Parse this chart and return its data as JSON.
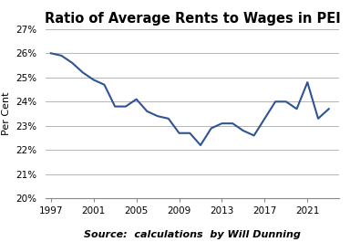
{
  "title": "Ratio of Average Rents to Wages in PEI",
  "source_label": "Source:  calculations  by Will Dunning",
  "ylabel": "Per Cent",
  "years": [
    1997,
    1998,
    1999,
    2000,
    2001,
    2002,
    2003,
    2004,
    2005,
    2006,
    2007,
    2008,
    2009,
    2010,
    2011,
    2012,
    2013,
    2014,
    2015,
    2016,
    2017,
    2018,
    2019,
    2020,
    2021,
    2022,
    2023
  ],
  "values": [
    0.26,
    0.259,
    0.256,
    0.252,
    0.249,
    0.247,
    0.238,
    0.238,
    0.241,
    0.236,
    0.234,
    0.233,
    0.227,
    0.227,
    0.222,
    0.229,
    0.231,
    0.231,
    0.228,
    0.226,
    0.233,
    0.24,
    0.24,
    0.237,
    0.248,
    0.233,
    0.237
  ],
  "ylim": [
    0.2,
    0.27
  ],
  "yticks": [
    0.2,
    0.21,
    0.22,
    0.23,
    0.24,
    0.25,
    0.26,
    0.27
  ],
  "xticks": [
    1997,
    2001,
    2005,
    2009,
    2013,
    2017,
    2021
  ],
  "xlim_left": 1996.5,
  "xlim_right": 2024.0,
  "line_color": "#2F5496",
  "line_width": 1.5,
  "title_fontsize": 10.5,
  "ylabel_fontsize": 8,
  "tick_fontsize": 7.5,
  "source_fontsize": 8,
  "bg_color": "#FFFFFF",
  "grid_color": "#AAAAAA",
  "spine_color": "#888888"
}
